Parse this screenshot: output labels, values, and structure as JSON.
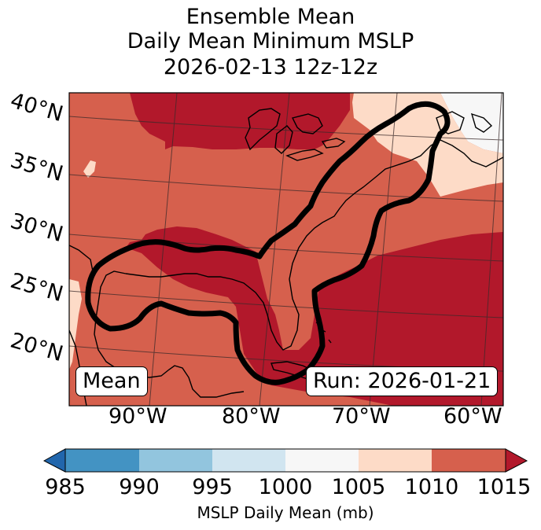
{
  "title": {
    "line1": "Ensemble Mean",
    "line2": "Daily Mean Minimum MSLP",
    "line3": "2026-02-13 12z-12z"
  },
  "map": {
    "lat_labels": [
      "40°N",
      "35°N",
      "30°N",
      "25°N",
      "20°N"
    ],
    "lon_labels": [
      "90°W",
      "80°W",
      "70°W",
      "60°W"
    ],
    "mean_badge": "Mean",
    "run_badge": "Run: 2026-01-21"
  },
  "colorbar": {
    "label": "MSLP Daily Mean (mb)",
    "ticks": [
      "985",
      "990",
      "995",
      "1000",
      "1005",
      "1010",
      "1015"
    ],
    "colors": {
      "under": "#2166ac",
      "985_990": "#4393c3",
      "990_995": "#92c5de",
      "995_1000": "#d1e5f0",
      "1000_1005": "#f7f7f7",
      "1005_1010": "#fddbc7",
      "1010_1015": "#d6604d",
      "over": "#b2182b"
    }
  }
}
